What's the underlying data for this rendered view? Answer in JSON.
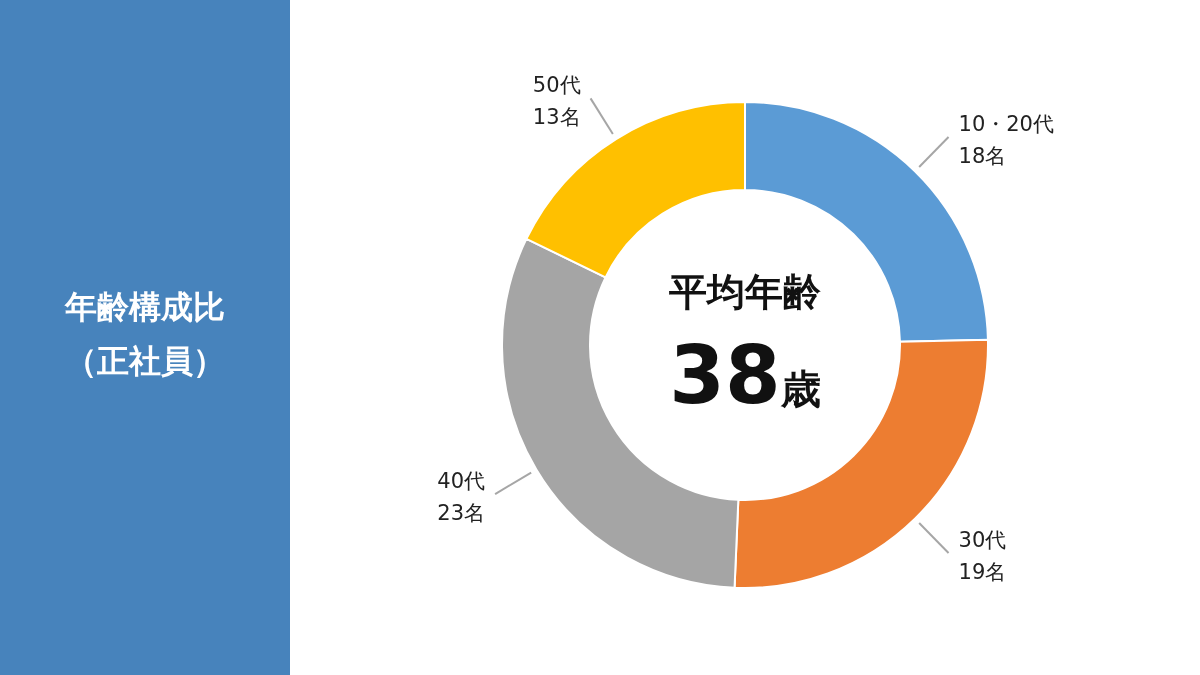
{
  "chart_data": {
    "type": "donut",
    "title": "年齢構成比",
    "subtitle": "（正社員）",
    "categories": [
      "10・20代",
      "30代",
      "40代",
      "50代"
    ],
    "values": [
      18,
      19,
      23,
      13
    ],
    "value_labels": [
      "18名",
      "19名",
      "23名",
      "13名"
    ],
    "colors": [
      "#5b9bd5",
      "#ed7d31",
      "#a5a5a5",
      "#ffc000"
    ],
    "annotations": [
      "平均年齢",
      "38歳"
    ]
  }
}
